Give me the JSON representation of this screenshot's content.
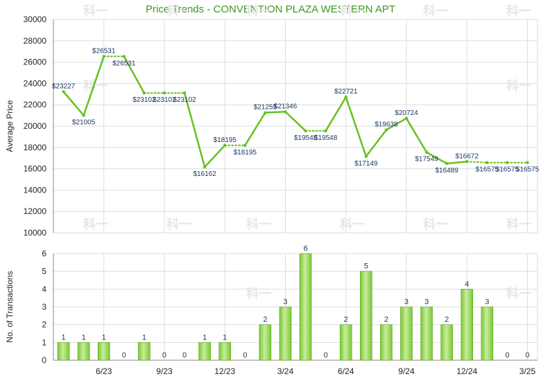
{
  "title": "Price Trends - CONVENTION PLAZA WESTERN APT",
  "watermark": "科一",
  "colors": {
    "line": "#66c01e",
    "bar": "#78c832",
    "bar_light": "#c9ec9c",
    "grid": "#dddddd",
    "axis": "#888888",
    "label": "#17365d",
    "title": "#3d9a1e"
  },
  "chart_data": [
    {
      "type": "line",
      "title": "Price Trends - CONVENTION PLAZA WESTERN APT",
      "ylabel": "Average Price",
      "ylim": [
        10000,
        30000
      ],
      "yticks": [
        10000,
        12000,
        14000,
        16000,
        18000,
        20000,
        22000,
        24000,
        26000,
        28000,
        30000
      ],
      "months": 24,
      "values": [
        23227,
        21005,
        26531,
        26531,
        23102,
        23102,
        23102,
        16162,
        18195,
        18195,
        21255,
        21346,
        19548,
        19548,
        22721,
        17149,
        19638,
        20724,
        17549,
        16489,
        16672,
        16575,
        16575,
        16575
      ],
      "labels": [
        "$23227",
        "$21005",
        "$26531",
        "$26531",
        "$23102",
        "$23102",
        "$23102",
        "$16162",
        "$18195",
        "$18195",
        "$21255",
        "$21346",
        "$19548",
        "$19548",
        "$22721",
        "$17149",
        "$19638",
        "$20724",
        "$17549",
        "$16489",
        "$16672",
        "$16575",
        "$16575",
        "$16575"
      ],
      "dotted_segments": [
        2,
        4,
        5,
        8,
        12,
        20,
        21,
        22
      ]
    },
    {
      "type": "bar",
      "ylabel": "No. of Transactions",
      "ylim": [
        0,
        6
      ],
      "yticks": [
        0,
        1,
        2,
        3,
        4,
        5,
        6
      ],
      "values": [
        1,
        1,
        1,
        0,
        1,
        0,
        0,
        1,
        1,
        0,
        2,
        3,
        6,
        0,
        2,
        5,
        2,
        3,
        3,
        2,
        4,
        3,
        0,
        0
      ],
      "xtick_labels": [
        "6/23",
        "9/23",
        "12/23",
        "3/24",
        "6/24",
        "9/24",
        "12/24",
        "3/25"
      ],
      "xtick_positions": [
        2,
        5,
        8,
        11,
        14,
        17,
        20,
        23
      ]
    }
  ]
}
